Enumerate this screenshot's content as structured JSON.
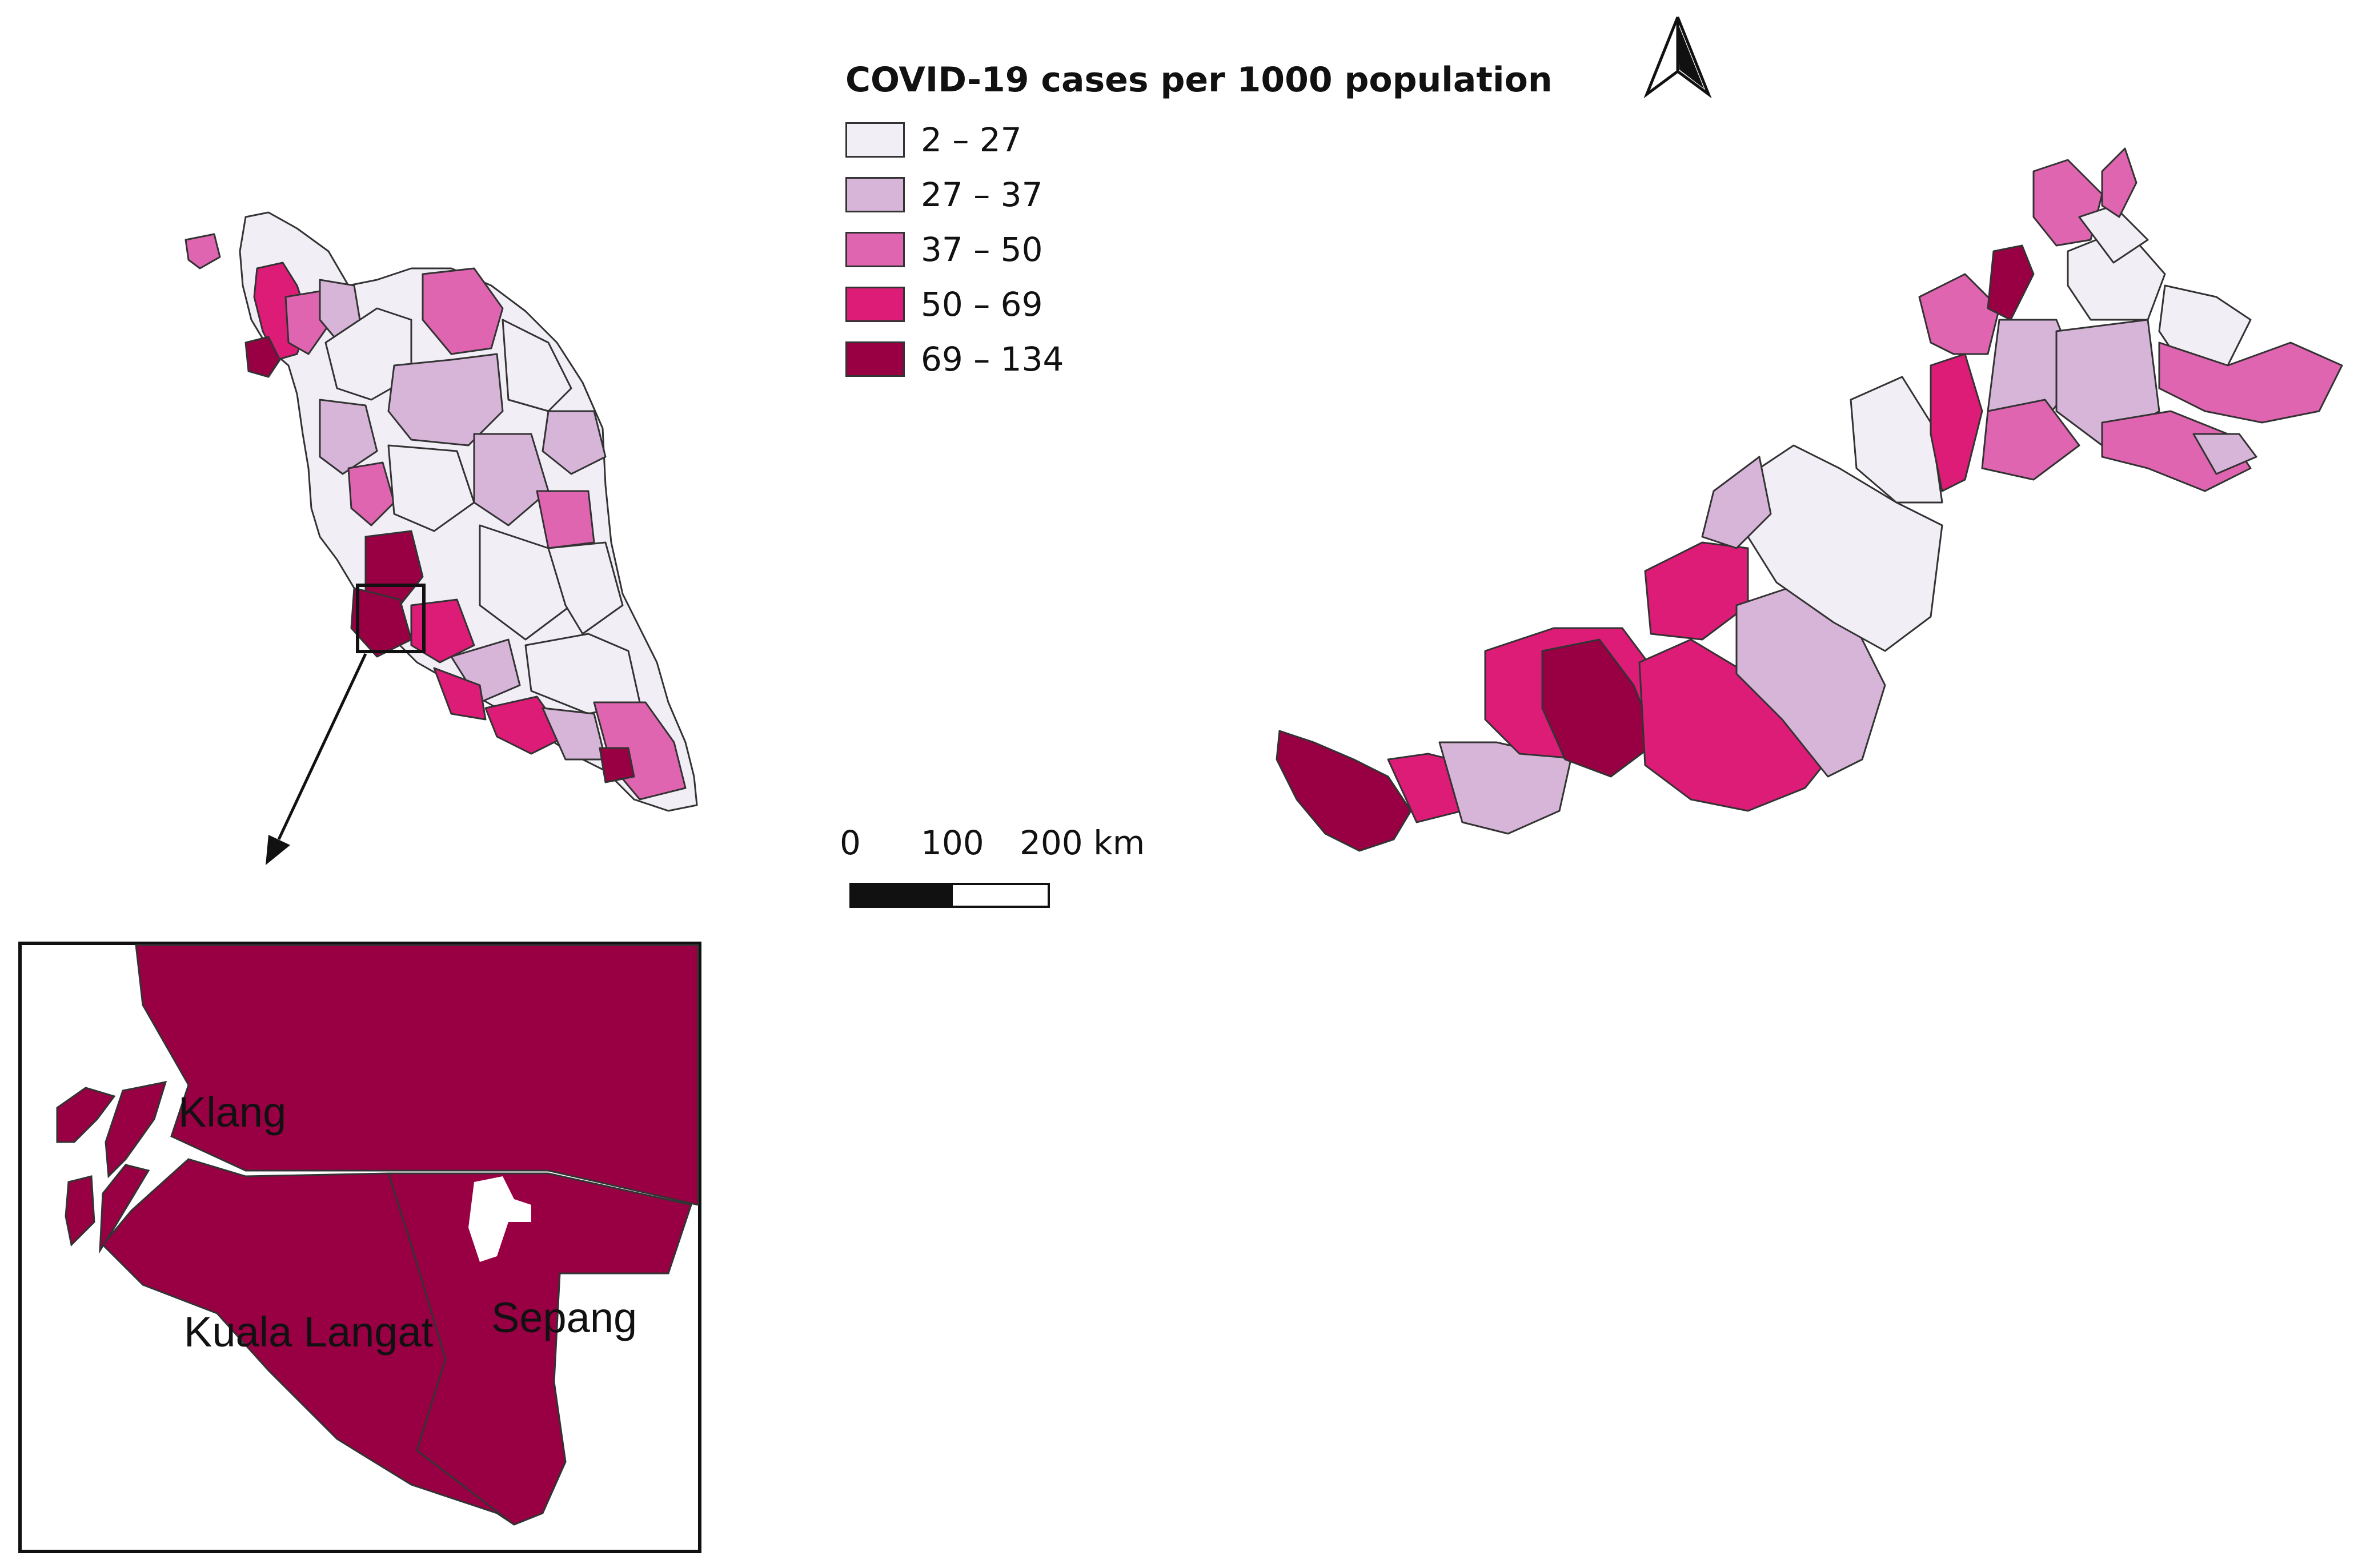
{
  "legend": {
    "title": "COVID-19 cases per 1000 population",
    "classes": [
      {
        "label": "2 – 27",
        "color": "#f1eef6"
      },
      {
        "label": "27 – 37",
        "color": "#d7b5d8"
      },
      {
        "label": "37 – 50",
        "color": "#df65b0"
      },
      {
        "label": "50 – 69",
        "color": "#dd1c77"
      },
      {
        "label": "69 – 134",
        "color": "#980043"
      }
    ]
  },
  "scale_bar": {
    "labels": [
      "0",
      "100",
      "200 km"
    ]
  },
  "inset": {
    "district_labels": [
      "Klang",
      "Kuala Langat",
      "Sepang"
    ],
    "fill_color": "#980043"
  },
  "icons": {
    "north_arrow": "north-arrow-icon",
    "zoom_arrow": "arrow-icon"
  }
}
